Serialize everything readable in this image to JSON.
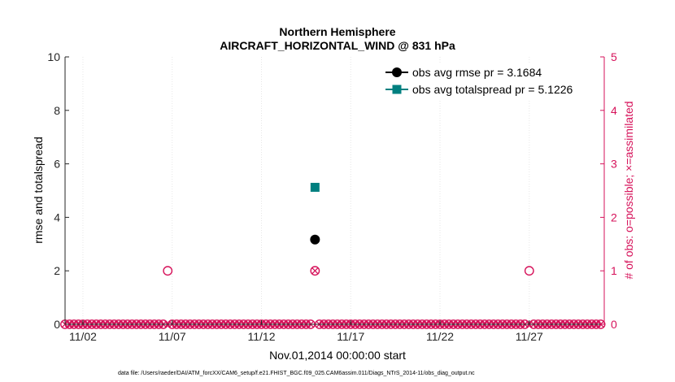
{
  "chart_data": {
    "type": "scatter",
    "title": "Northern Hemisphere",
    "subtitle": "AIRCRAFT_HORIZONTAL_WIND @ 831 hPa",
    "xlabel": "Nov.01,2014 00:00:00 start",
    "ylabel_left": "rmse and totalspread",
    "ylabel_right": "# of obs: o=possible; ×=assimilated",
    "x_tick_labels": [
      "11/02",
      "11/07",
      "11/12",
      "11/17",
      "11/22",
      "11/27"
    ],
    "x_tick_days": [
      2,
      7,
      12,
      17,
      22,
      27
    ],
    "xlim": [
      1,
      31.2
    ],
    "ylim_left": [
      0,
      10
    ],
    "yticks_left": [
      0,
      2,
      4,
      6,
      8,
      10
    ],
    "ylim_right": [
      0,
      5
    ],
    "yticks_right": [
      0,
      1,
      2,
      3,
      4,
      5
    ],
    "grid": true,
    "legend_position": "top-right",
    "colors": {
      "rmse": "#000000",
      "totalspread": "#008080",
      "obs": "#d6125a"
    },
    "series": [
      {
        "name": "obs avg rmse pr = 3.1684",
        "marker": "filled-circle",
        "color": "#000000",
        "axis": "left",
        "points": [
          {
            "x": 15.0,
            "y": 3.1684
          }
        ]
      },
      {
        "name": "obs avg totalspread pr = 5.1226",
        "marker": "filled-square",
        "color": "#008080",
        "axis": "left",
        "points": [
          {
            "x": 15.0,
            "y": 5.1226
          }
        ]
      }
    ],
    "obs_counts": {
      "axis": "right",
      "start_day": 1.0,
      "step_days": 0.25,
      "count": 121,
      "possible_nonzero": [
        {
          "x": 6.75,
          "y": 1
        },
        {
          "x": 15.0,
          "y": 1
        },
        {
          "x": 27.0,
          "y": 1
        }
      ],
      "assimilated_nonzero": [
        {
          "x": 15.0,
          "y": 1
        }
      ]
    },
    "footnote": "data file: /Users/raeder/DAI/ATM_forcXX/CAM6_setup/f.e21.FHIST_BGC.f09_025.CAM6assim.011/Diags_NTrS_2014-11/obs_diag_output.nc"
  }
}
